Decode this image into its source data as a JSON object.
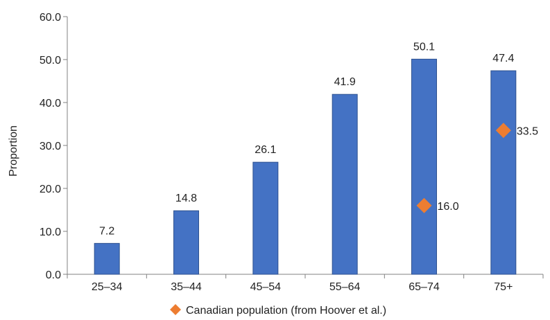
{
  "chart_data": {
    "type": "bar",
    "categories": [
      "25–34",
      "35–44",
      "45–54",
      "55–64",
      "65–74",
      "75+"
    ],
    "series": [
      {
        "values": [
          7.2,
          14.8,
          26.1,
          41.9,
          50.1,
          47.4
        ],
        "data_labels": [
          "7.2",
          "14.8",
          "26.1",
          "41.9",
          "50.1",
          "47.4"
        ],
        "color": "#4472C4"
      },
      {
        "name": "Canadian population (from Hoover et al.)",
        "marker": "diamond",
        "color": "#ED7D31",
        "points": [
          {
            "category": "65–74",
            "value": 16.0,
            "label": "16.0"
          },
          {
            "category": "75+",
            "value": 33.5,
            "label": "33.5"
          }
        ]
      }
    ],
    "ylabel": "Proportion",
    "xlabel": "",
    "ylim": [
      0,
      60
    ],
    "yticks": [
      "0.0",
      "10.0",
      "20.0",
      "30.0",
      "40.0",
      "50.0",
      "60.0"
    ],
    "grid": false,
    "legend": "bottom"
  }
}
